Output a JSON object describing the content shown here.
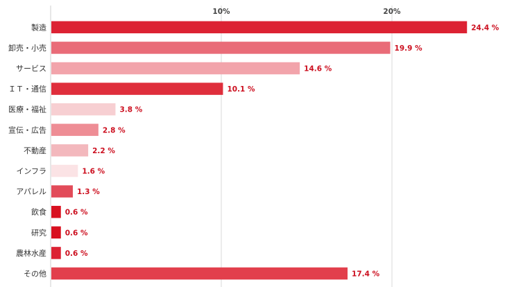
{
  "chart_data": {
    "type": "bar",
    "orientation": "horizontal",
    "title": "",
    "xlabel": "",
    "ylabel": "",
    "xlim": [
      0,
      26
    ],
    "ticks": [
      {
        "value": 10,
        "label": "10%"
      },
      {
        "value": 20,
        "label": "20%"
      }
    ],
    "grid": true,
    "categories": [
      "製造",
      "卸売・小売",
      "サービス",
      "ＩＴ・通信",
      "医療・福祉",
      "宣伝・広告",
      "不動産",
      "インフラ",
      "アパレル",
      "飲食",
      "研究",
      "農林水産",
      "その他"
    ],
    "values": [
      24.4,
      19.9,
      14.6,
      10.1,
      3.8,
      2.8,
      2.2,
      1.6,
      1.3,
      0.6,
      0.6,
      0.6,
      17.4
    ],
    "value_labels": [
      "24.4 %",
      "19.9 %",
      "14.6 %",
      "10.1 %",
      "3.8 %",
      "2.8 %",
      "2.2 %",
      "1.6 %",
      "1.3 %",
      "0.6 %",
      "0.6 %",
      "0.6 %",
      "17.4 %"
    ],
    "bar_colors": [
      "#dc2233",
      "#e96c78",
      "#f2a4ab",
      "#df2e3c",
      "#f7cfd2",
      "#ee8d95",
      "#f3b8bd",
      "#fbe3e5",
      "#e24b59",
      "#d8101f",
      "#d8101f",
      "#dc2233",
      "#e23f4c"
    ]
  }
}
